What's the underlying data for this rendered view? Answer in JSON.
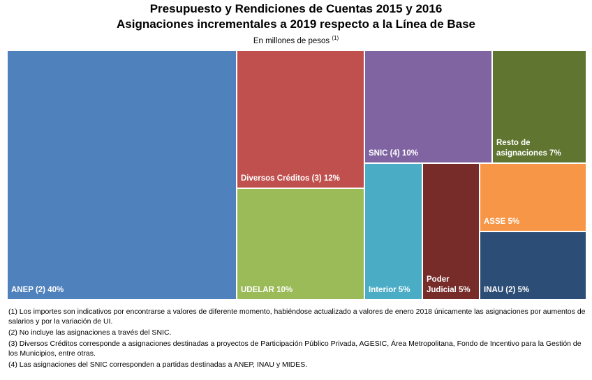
{
  "title_line1": "Presupuesto y Rendiciones de Cuentas 2015 y 2016",
  "title_line2": "Asignaciones incrementales a 2019 respecto a la Línea de Base",
  "subtitle": "En millones de pesos",
  "subtitle_ref": "(1)",
  "chart_data": {
    "type": "treemap",
    "title": "Presupuesto y Rendiciones de Cuentas 2015 y 2016 — Asignaciones incrementales a 2019 respecto a la Línea de Base",
    "unit": "En millones de pesos",
    "items": [
      {
        "name": "ANEP (2)",
        "label": "ANEP (2) 40%",
        "percent": 40,
        "color": "#4f81bd"
      },
      {
        "name": "Diversos Créditos (3)",
        "label": "Diversos Créditos (3) 12%",
        "percent": 12,
        "color": "#c0504d"
      },
      {
        "name": "UDELAR",
        "label": "UDELAR 10%",
        "percent": 10,
        "color": "#9bbb59"
      },
      {
        "name": "SNIC (4)",
        "label": "SNIC (4) 10%",
        "percent": 10,
        "color": "#8064a2"
      },
      {
        "name": "Interior",
        "label": "Interior 5%",
        "percent": 5,
        "color": "#4bacc6"
      },
      {
        "name": "Poder Judicial",
        "label": "Poder Judicial 5%",
        "label_lines": [
          "Poder",
          "Judicial 5%"
        ],
        "percent": 5,
        "color": "#772c2a"
      },
      {
        "name": "Resto de asignaciones",
        "label": "Resto de asignaciones 7%",
        "label_lines": [
          "Resto de",
          "asignaciones 7%"
        ],
        "percent": 7,
        "color": "#5f7530"
      },
      {
        "name": "ASSE",
        "label": "ASSE 5%",
        "percent": 5,
        "color": "#f79646"
      },
      {
        "name": "INAU (2)",
        "label": "INAU (2) 5%",
        "percent": 5,
        "color": "#2c4d75"
      }
    ]
  },
  "notes": [
    "(1) Los importes son indicativos por encontrarse a valores de diferente momento, habiéndose actualizado a valores de enero 2018 únicamente las asignaciones por aumentos de salarios y por la variación de UI.",
    "(2) No incluye las asignaciones a través del SNIC.",
    "(3) Diversos Créditos corresponde a asignaciones destinadas a proyectos de Participación Público Privada, AGESIC, Área Metropolitana, Fondo de Incentivo para la Gestión de los Municipios, entre otras.",
    "(4) Las asignaciones del SNIC corresponden a partidas destinadas a ANEP, INAU y MIDES."
  ]
}
